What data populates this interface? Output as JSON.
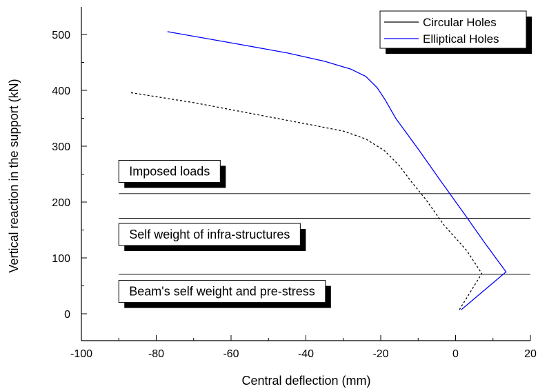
{
  "chart_data": {
    "type": "line",
    "xlabel": "Central deflection (mm)",
    "ylabel": "Vertical reaction in the support (kN)",
    "xlim": [
      -100,
      20
    ],
    "ylim": [
      -60,
      550
    ],
    "x_ticks": [
      -100,
      -80,
      -60,
      -40,
      -20,
      0,
      20
    ],
    "y_ticks": [
      0,
      100,
      200,
      300,
      400,
      500
    ],
    "grid": false,
    "legend_position": "top-right",
    "series": [
      {
        "name": "Circular Holes",
        "style": "dashed",
        "color": "#000000",
        "points": [
          [
            1,
            7
          ],
          [
            7,
            72
          ],
          [
            3,
            113
          ],
          [
            -3,
            158
          ],
          [
            -8,
            205
          ],
          [
            -12,
            238
          ],
          [
            -15,
            265
          ],
          [
            -19,
            292
          ],
          [
            -24,
            313
          ],
          [
            -30,
            327
          ],
          [
            -40,
            340
          ],
          [
            -55,
            359
          ],
          [
            -70,
            378
          ],
          [
            -87,
            396
          ]
        ]
      },
      {
        "name": "Elliptical Holes",
        "style": "solid",
        "color": "#0000ff",
        "points": [
          [
            1.5,
            7
          ],
          [
            13.5,
            75
          ],
          [
            8,
            125
          ],
          [
            2,
            182
          ],
          [
            -4,
            238
          ],
          [
            -10,
            295
          ],
          [
            -16,
            350
          ],
          [
            -19,
            385
          ],
          [
            -21,
            405
          ],
          [
            -24,
            425
          ],
          [
            -28,
            438
          ],
          [
            -35,
            452
          ],
          [
            -45,
            467
          ],
          [
            -60,
            485
          ],
          [
            -77,
            505
          ]
        ]
      }
    ],
    "reference_lines": [
      {
        "y": 215,
        "x_from": -90,
        "x_to": 20,
        "label": "Imposed loads",
        "label_x": -90,
        "label_y": 255
      },
      {
        "y": 171,
        "x_from": -90,
        "x_to": 20,
        "label": "Self weight of infra-structures",
        "label_x": -90,
        "label_y": 142
      },
      {
        "y": 71,
        "x_from": -90,
        "x_to": 20,
        "label": "Beam's self weight and pre-stress",
        "label_x": -90,
        "label_y": 40
      }
    ]
  }
}
